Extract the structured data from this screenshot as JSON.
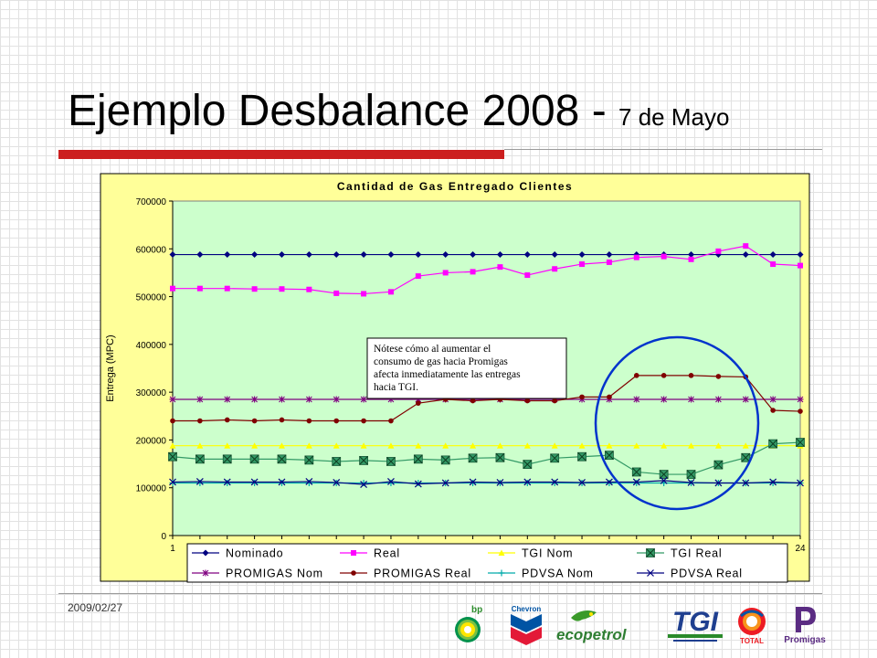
{
  "slide": {
    "title_main": "Ejemplo Desbalance 2008 - ",
    "title_sub": "7 de Mayo",
    "footer_date": "2009/02/27"
  },
  "logos": {
    "bp": "bp",
    "chevron": "Chevron",
    "ecopetrol": "ecopetrol",
    "tgi": "TGI",
    "total": "TOTAL",
    "promigas": "Promigas"
  },
  "annotation": {
    "text": [
      "Nótese cómo al aumentar el",
      "consumo de gas hacia Promigas",
      "afecta inmediatamente las entregas",
      "hacia TGI."
    ]
  },
  "colors": {
    "plot_bg": "#ccffcc",
    "frame_bg": "#ffff99",
    "circle": "#0033cc"
  },
  "chart_data": {
    "type": "line",
    "title": "Cantidad de Gas Entregado Clientes",
    "xlabel": "",
    "ylabel": "Entrega (MPC)",
    "x": [
      1,
      2,
      3,
      4,
      5,
      6,
      7,
      8,
      9,
      10,
      11,
      12,
      13,
      14,
      15,
      16,
      17,
      18,
      19,
      20,
      21,
      22,
      23,
      24
    ],
    "x_tick_labels": [
      "1",
      "24"
    ],
    "ylim": [
      0,
      700000
    ],
    "y_ticks": [
      "0",
      "100000",
      "200000",
      "300000",
      "400000",
      "500000",
      "600000",
      "700000"
    ],
    "grid": false,
    "legend_position": "bottom",
    "series": [
      {
        "name": "Nominado",
        "color": "#000080",
        "marker": "diamond",
        "values": [
          588000,
          588000,
          588000,
          588000,
          588000,
          588000,
          588000,
          588000,
          588000,
          588000,
          588000,
          588000,
          588000,
          588000,
          588000,
          588000,
          588000,
          588000,
          588000,
          588000,
          588000,
          588000,
          588000,
          588000
        ]
      },
      {
        "name": "Real",
        "color": "#ff00ff",
        "marker": "square",
        "values": [
          517000,
          517000,
          517000,
          516000,
          516000,
          515000,
          507000,
          506000,
          510000,
          543000,
          550000,
          552000,
          562000,
          545000,
          558000,
          568000,
          572000,
          582000,
          584000,
          578000,
          595000,
          606000,
          568000,
          565000
        ]
      },
      {
        "name": "TGI Nom",
        "color": "#ffff00",
        "marker": "triangle",
        "values": [
          188000,
          188000,
          188000,
          188000,
          188000,
          188000,
          188000,
          188000,
          188000,
          188000,
          188000,
          188000,
          188000,
          188000,
          188000,
          188000,
          188000,
          188000,
          188000,
          188000,
          188000,
          188000,
          188000,
          188000
        ]
      },
      {
        "name": "TGI Real",
        "color": "#339966",
        "marker": "xsquare",
        "values": [
          165000,
          160000,
          160000,
          160000,
          160000,
          158000,
          155000,
          157000,
          155000,
          160000,
          158000,
          162000,
          163000,
          149000,
          162000,
          165000,
          168000,
          133000,
          128000,
          128000,
          148000,
          163000,
          192000,
          195000
        ]
      },
      {
        "name": "PROMIGAS Nom",
        "color": "#800080",
        "marker": "star",
        "values": [
          285000,
          285000,
          285000,
          285000,
          285000,
          285000,
          285000,
          285000,
          285000,
          285000,
          285000,
          285000,
          285000,
          285000,
          285000,
          285000,
          285000,
          285000,
          285000,
          285000,
          285000,
          285000,
          285000,
          285000
        ]
      },
      {
        "name": "PROMIGAS Real",
        "color": "#800000",
        "marker": "circle",
        "values": [
          240000,
          240000,
          242000,
          240000,
          242000,
          240000,
          240000,
          240000,
          240000,
          277000,
          285000,
          282000,
          285000,
          282000,
          282000,
          290000,
          290000,
          335000,
          335000,
          335000,
          333000,
          332000,
          262000,
          260000
        ]
      },
      {
        "name": "PDVSA Nom",
        "color": "#00aaaa",
        "marker": "plus",
        "values": [
          110000,
          110000,
          110000,
          110000,
          110000,
          110000,
          110000,
          110000,
          110000,
          110000,
          110000,
          110000,
          110000,
          110000,
          110000,
          110000,
          110000,
          110000,
          110000,
          110000,
          110000,
          110000,
          110000,
          110000
        ]
      },
      {
        "name": "PDVSA Real",
        "color": "#000080",
        "marker": "x",
        "values": [
          112000,
          113000,
          112000,
          112000,
          112000,
          113000,
          111000,
          107000,
          113000,
          108000,
          110000,
          112000,
          111000,
          112000,
          112000,
          111000,
          112000,
          112000,
          115000,
          111000,
          110000,
          110000,
          112000,
          110000
        ]
      }
    ]
  }
}
